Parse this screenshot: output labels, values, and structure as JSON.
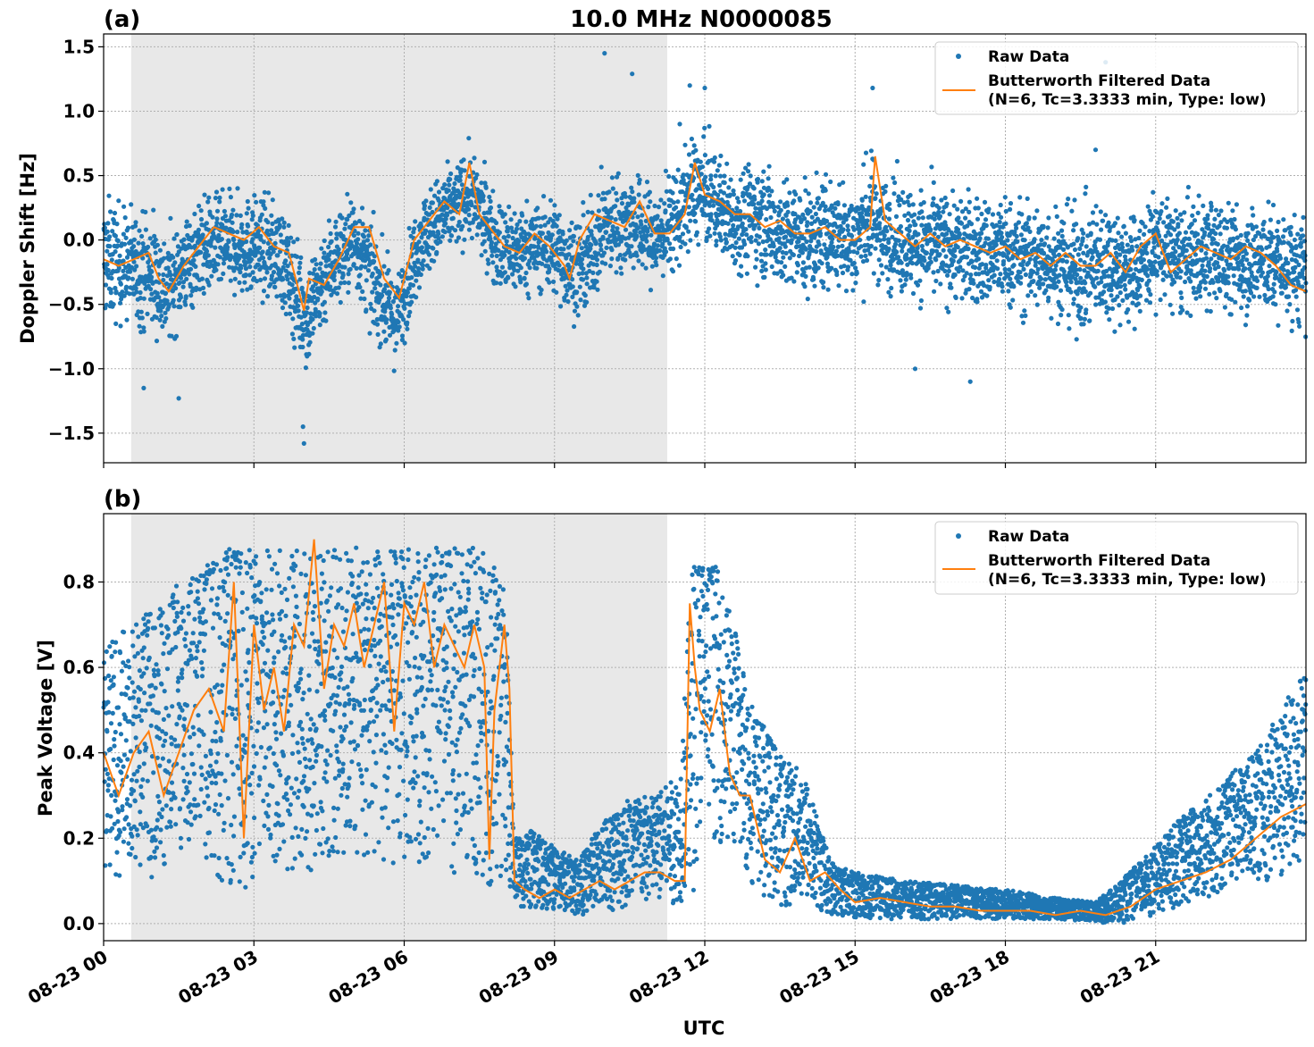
{
  "figure_title": "10.0 MHz N0000085",
  "colors": {
    "raw": "#1f77b4",
    "filtered": "#ff7f0e",
    "shade": "#e8e8e8"
  },
  "chart_data": [
    {
      "type": "scatter",
      "panel_label": "(a)",
      "title": "10.0 MHz N0000085",
      "ylabel": "Doppler Shift [Hz]",
      "xlabel": "",
      "xlim": [
        0,
        24
      ],
      "ylim": [
        -1.73,
        1.6
      ],
      "yticks": [
        -1.5,
        -1.0,
        -0.5,
        0.0,
        0.5,
        1.0,
        1.5
      ],
      "ytick_labels": [
        "−1.5",
        "−1.0",
        "−0.5",
        "0.0",
        "0.5",
        "1.0",
        "1.5"
      ],
      "grid": true,
      "shaded_interval": [
        0.55,
        11.25
      ],
      "legend": {
        "placement": "top-right",
        "raw": "Raw Data",
        "filtered_line1": "Butterworth Filtered Data",
        "filtered_line2": "(N=6, Tc=3.3333 min, Type: low)"
      },
      "series": [
        {
          "name": "Raw Data",
          "kind": "scatter",
          "x": [
            0,
            0.5,
            1,
            1.25,
            1.5,
            2,
            2.5,
            3,
            3.5,
            4.05,
            4.5,
            5,
            5.5,
            5.85,
            6.3,
            6.8,
            7.3,
            7.7,
            8,
            8.5,
            9,
            9.3,
            9.6,
            10,
            10.5,
            11,
            11.5,
            11.8,
            12.2,
            12.6,
            13,
            13.5,
            14,
            14.5,
            15,
            15.3,
            15.6,
            16,
            16.5,
            17,
            17.5,
            18,
            18.5,
            19,
            19.5,
            20,
            20.5,
            21,
            21.5,
            22,
            22.5,
            23,
            23.5,
            24
          ],
          "center": [
            -0.15,
            -0.2,
            -0.25,
            -0.4,
            -0.25,
            -0.05,
            -0.05,
            -0.05,
            -0.1,
            -0.6,
            -0.2,
            0.0,
            -0.4,
            -0.65,
            0.0,
            0.2,
            0.35,
            0.1,
            -0.1,
            -0.05,
            -0.05,
            -0.2,
            -0.2,
            0.1,
            0.15,
            0.0,
            0.2,
            0.4,
            0.3,
            0.15,
            0.2,
            0.05,
            0.0,
            0.05,
            0.0,
            0.2,
            0.05,
            0.0,
            -0.05,
            -0.05,
            -0.1,
            -0.1,
            -0.15,
            -0.15,
            -0.25,
            -0.15,
            -0.25,
            -0.05,
            -0.15,
            -0.1,
            -0.15,
            -0.15,
            -0.2,
            -0.25
          ],
          "halfwidth": [
            0.5,
            0.45,
            0.5,
            0.45,
            0.4,
            0.4,
            0.4,
            0.4,
            0.4,
            0.45,
            0.4,
            0.4,
            0.4,
            0.35,
            0.35,
            0.35,
            0.35,
            0.35,
            0.4,
            0.35,
            0.4,
            0.4,
            0.4,
            0.4,
            0.4,
            0.4,
            0.4,
            0.45,
            0.4,
            0.4,
            0.45,
            0.45,
            0.45,
            0.45,
            0.45,
            0.5,
            0.45,
            0.45,
            0.45,
            0.45,
            0.45,
            0.45,
            0.45,
            0.45,
            0.5,
            0.5,
            0.45,
            0.45,
            0.45,
            0.45,
            0.45,
            0.45,
            0.45,
            0.45
          ]
        },
        {
          "name": "Butterworth Filtered Data",
          "kind": "line",
          "x": [
            0,
            0.3,
            0.6,
            0.9,
            1.1,
            1.3,
            1.6,
            1.9,
            2.2,
            2.5,
            2.8,
            3.1,
            3.4,
            3.7,
            4.0,
            4.1,
            4.4,
            4.7,
            5.0,
            5.3,
            5.6,
            5.9,
            6.2,
            6.5,
            6.8,
            7.1,
            7.3,
            7.5,
            7.7,
            8.0,
            8.3,
            8.6,
            8.9,
            9.2,
            9.3,
            9.5,
            9.8,
            10.1,
            10.4,
            10.7,
            11.0,
            11.3,
            11.6,
            11.8,
            12.0,
            12.3,
            12.6,
            12.9,
            13.2,
            13.5,
            13.8,
            14.1,
            14.4,
            14.7,
            15.0,
            15.3,
            15.4,
            15.6,
            15.9,
            16.2,
            16.5,
            16.8,
            17.1,
            17.4,
            17.7,
            18.0,
            18.3,
            18.6,
            18.9,
            19.2,
            19.5,
            19.8,
            20.1,
            20.4,
            20.7,
            21.0,
            21.3,
            21.6,
            21.9,
            22.2,
            22.5,
            22.8,
            23.1,
            23.4,
            23.7,
            24
          ],
          "y": [
            -0.15,
            -0.2,
            -0.15,
            -0.1,
            -0.3,
            -0.4,
            -0.2,
            -0.05,
            0.1,
            0.05,
            0.0,
            0.1,
            -0.05,
            -0.1,
            -0.55,
            -0.3,
            -0.35,
            -0.15,
            0.1,
            0.1,
            -0.3,
            -0.45,
            0.0,
            0.15,
            0.3,
            0.2,
            0.6,
            0.2,
            0.1,
            -0.05,
            -0.1,
            0.05,
            -0.05,
            -0.2,
            -0.3,
            0.0,
            0.2,
            0.15,
            0.1,
            0.3,
            0.05,
            0.05,
            0.2,
            0.6,
            0.35,
            0.3,
            0.2,
            0.2,
            0.1,
            0.15,
            0.05,
            0.05,
            0.1,
            0.0,
            0.0,
            0.1,
            0.65,
            0.15,
            0.05,
            -0.05,
            0.05,
            -0.05,
            0.0,
            -0.05,
            -0.1,
            -0.05,
            -0.15,
            -0.1,
            -0.2,
            -0.1,
            -0.2,
            -0.2,
            -0.1,
            -0.25,
            -0.05,
            0.05,
            -0.25,
            -0.15,
            -0.05,
            -0.1,
            -0.15,
            -0.05,
            -0.1,
            -0.2,
            -0.35,
            -0.4
          ]
        }
      ],
      "outliers_x": [
        10.0,
        10.55,
        11.5,
        11.7,
        12.0,
        15.35,
        19.8,
        20.0,
        4.0,
        3.98,
        1.5,
        0.8,
        16.2,
        17.3
      ],
      "outliers_y": [
        1.45,
        1.29,
        0.9,
        1.2,
        1.18,
        1.18,
        0.7,
        1.38,
        -1.58,
        -1.45,
        -1.23,
        -1.15,
        -1.0,
        -1.1
      ]
    },
    {
      "type": "scatter",
      "panel_label": "(b)",
      "ylabel": "Peak Voltage [V]",
      "xlabel": "UTC",
      "xlim": [
        0,
        24
      ],
      "ylim": [
        -0.04,
        0.96
      ],
      "yticks": [
        0.0,
        0.2,
        0.4,
        0.6,
        0.8
      ],
      "ytick_labels": [
        "0.0",
        "0.2",
        "0.4",
        "0.6",
        "0.8"
      ],
      "xticks": [
        0,
        3,
        6,
        9,
        12,
        15,
        18,
        21
      ],
      "xtick_labels": [
        "08-23 00",
        "08-23 03",
        "08-23 06",
        "08-23 09",
        "08-23 12",
        "08-23 15",
        "08-23 18",
        "08-23 21"
      ],
      "grid": true,
      "shaded_interval": [
        0.55,
        11.25
      ],
      "legend": {
        "placement": "top-right",
        "raw": "Raw Data",
        "filtered_line1": "Butterworth Filtered Data",
        "filtered_line2": "(N=6, Tc=3.3333 min, Type: low)"
      },
      "series": [
        {
          "name": "Raw Data",
          "kind": "scatter",
          "x": [
            0,
            0.5,
            1,
            1.5,
            2,
            2.5,
            3,
            3.5,
            4,
            4.5,
            5,
            5.5,
            6,
            6.5,
            7,
            7.5,
            7.75,
            8.0,
            8.2,
            8.5,
            9,
            9.5,
            10,
            10.5,
            11,
            11.5,
            11.75,
            11.9,
            12.2,
            12.6,
            13,
            13.5,
            14,
            14.5,
            15,
            16,
            17,
            18,
            19,
            19.8,
            20.3,
            21,
            21.5,
            22,
            22.5,
            23,
            23.5,
            24
          ],
          "low": [
            0.1,
            0.12,
            0.1,
            0.15,
            0.15,
            0.05,
            0.08,
            0.12,
            0.1,
            0.12,
            0.15,
            0.1,
            0.12,
            0.15,
            0.1,
            0.12,
            0.05,
            0.1,
            0.04,
            0.03,
            0.03,
            0.02,
            0.03,
            0.03,
            0.04,
            0.05,
            0.05,
            0.2,
            0.2,
            0.15,
            0.08,
            0.04,
            0.04,
            0.02,
            0.01,
            0.01,
            0.01,
            0.01,
            0.01,
            0.0,
            0.0,
            0.02,
            0.04,
            0.05,
            0.08,
            0.1,
            0.1,
            0.12
          ],
          "high": [
            0.65,
            0.7,
            0.75,
            0.8,
            0.85,
            0.88,
            0.88,
            0.88,
            0.88,
            0.88,
            0.88,
            0.88,
            0.88,
            0.88,
            0.88,
            0.88,
            0.85,
            0.85,
            0.2,
            0.22,
            0.18,
            0.15,
            0.25,
            0.3,
            0.3,
            0.35,
            0.85,
            0.88,
            0.85,
            0.7,
            0.5,
            0.4,
            0.35,
            0.15,
            0.12,
            0.1,
            0.09,
            0.08,
            0.06,
            0.05,
            0.1,
            0.18,
            0.25,
            0.3,
            0.35,
            0.4,
            0.5,
            0.6
          ]
        },
        {
          "name": "Butterworth Filtered Data",
          "kind": "line",
          "x": [
            0,
            0.3,
            0.6,
            0.9,
            1.2,
            1.5,
            1.8,
            2.1,
            2.4,
            2.6,
            2.8,
            3.0,
            3.2,
            3.4,
            3.6,
            3.8,
            4.0,
            4.2,
            4.4,
            4.6,
            4.8,
            5.0,
            5.2,
            5.4,
            5.6,
            5.8,
            6.0,
            6.2,
            6.4,
            6.6,
            6.8,
            7.0,
            7.2,
            7.4,
            7.6,
            7.7,
            7.8,
            8.0,
            8.1,
            8.2,
            8.4,
            8.7,
            9.0,
            9.3,
            9.6,
            9.9,
            10.2,
            10.5,
            10.8,
            11.1,
            11.4,
            11.6,
            11.7,
            11.8,
            11.9,
            12.1,
            12.3,
            12.5,
            12.7,
            12.9,
            13.2,
            13.5,
            13.8,
            14.1,
            14.4,
            14.7,
            15.0,
            15.5,
            16.0,
            16.5,
            17.0,
            17.5,
            18.0,
            18.5,
            19.0,
            19.5,
            20.0,
            20.5,
            21.0,
            21.5,
            22.0,
            22.5,
            23.0,
            23.5,
            24
          ],
          "y": [
            0.4,
            0.3,
            0.4,
            0.45,
            0.3,
            0.4,
            0.5,
            0.55,
            0.45,
            0.8,
            0.2,
            0.7,
            0.5,
            0.6,
            0.45,
            0.7,
            0.65,
            0.9,
            0.55,
            0.7,
            0.65,
            0.75,
            0.6,
            0.7,
            0.8,
            0.45,
            0.75,
            0.7,
            0.8,
            0.6,
            0.7,
            0.65,
            0.6,
            0.7,
            0.6,
            0.15,
            0.5,
            0.7,
            0.55,
            0.1,
            0.08,
            0.06,
            0.08,
            0.06,
            0.08,
            0.1,
            0.08,
            0.1,
            0.12,
            0.12,
            0.1,
            0.1,
            0.75,
            0.6,
            0.5,
            0.45,
            0.55,
            0.35,
            0.3,
            0.3,
            0.15,
            0.12,
            0.2,
            0.1,
            0.12,
            0.08,
            0.05,
            0.06,
            0.05,
            0.04,
            0.04,
            0.03,
            0.03,
            0.03,
            0.02,
            0.03,
            0.02,
            0.04,
            0.08,
            0.1,
            0.12,
            0.15,
            0.2,
            0.25,
            0.28
          ]
        }
      ]
    }
  ]
}
